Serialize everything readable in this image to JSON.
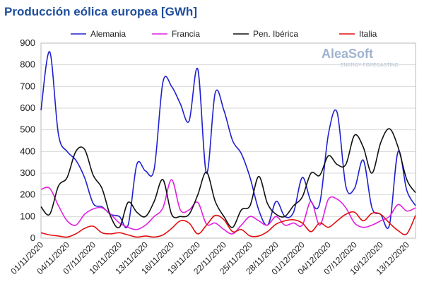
{
  "chart_data": {
    "type": "line",
    "title": "Producción eólica europea [GWh]",
    "watermark": {
      "brand": "AleaSoft",
      "tagline": "ENERGY FORECASTING"
    },
    "categories": [
      "01/11/2020",
      null,
      null,
      "04/11/2020",
      null,
      null,
      "07/11/2020",
      null,
      null,
      "10/11/2020",
      null,
      null,
      "13/11/2020",
      null,
      null,
      "16/11/2020",
      null,
      null,
      "19/11/2020",
      null,
      null,
      "22/11/2020",
      null,
      null,
      "25/11/2020",
      null,
      null,
      "28/11/2020",
      null,
      null,
      "01/12/2020",
      null,
      null,
      "04/12/2020",
      null,
      null,
      "07/12/2020",
      null,
      null,
      "10/12/2020",
      null,
      null,
      "13/12/2020",
      null
    ],
    "series": [
      {
        "name": "Alemania",
        "color": "#2020d0",
        "values": [
          590,
          860,
          480,
          400,
          360,
          280,
          160,
          145,
          110,
          100,
          60,
          340,
          310,
          320,
          720,
          700,
          620,
          540,
          780,
          300,
          670,
          590,
          450,
          390,
          280,
          130,
          60,
          170,
          100,
          120,
          280,
          170,
          160,
          480,
          580,
          240,
          230,
          360,
          140,
          110,
          60,
          400,
          220,
          150
        ]
      },
      {
        "name": "Francia",
        "color": "#e020e0",
        "values": [
          225,
          230,
          150,
          80,
          60,
          110,
          135,
          140,
          110,
          70,
          50,
          40,
          60,
          100,
          140,
          270,
          130,
          130,
          165,
          65,
          70,
          40,
          20,
          60,
          100,
          80,
          60,
          100,
          60,
          70,
          60,
          170,
          60,
          180,
          180,
          140,
          70,
          50,
          60,
          80,
          100,
          155,
          125,
          140
        ]
      },
      {
        "name": "Pen. Ibérica",
        "color": "#111111",
        "values": [
          145,
          110,
          240,
          280,
          400,
          410,
          290,
          230,
          100,
          50,
          165,
          120,
          100,
          170,
          270,
          110,
          100,
          110,
          200,
          305,
          170,
          100,
          50,
          130,
          150,
          285,
          160,
          110,
          100,
          150,
          190,
          300,
          290,
          380,
          340,
          340,
          475,
          420,
          300,
          440,
          505,
          420,
          270,
          210
        ]
      },
      {
        "name": "Italia",
        "color": "#e01010",
        "values": [
          25,
          15,
          10,
          5,
          20,
          45,
          55,
          25,
          20,
          25,
          15,
          5,
          10,
          5,
          15,
          45,
          80,
          70,
          20,
          60,
          105,
          85,
          30,
          40,
          10,
          10,
          30,
          65,
          80,
          85,
          70,
          30,
          70,
          50,
          80,
          110,
          120,
          80,
          115,
          110,
          70,
          35,
          20,
          105
        ]
      }
    ],
    "ylim": [
      0,
      900
    ],
    "yticks": [
      0,
      100,
      200,
      300,
      400,
      500,
      600,
      700,
      800,
      900
    ],
    "grid": true
  }
}
